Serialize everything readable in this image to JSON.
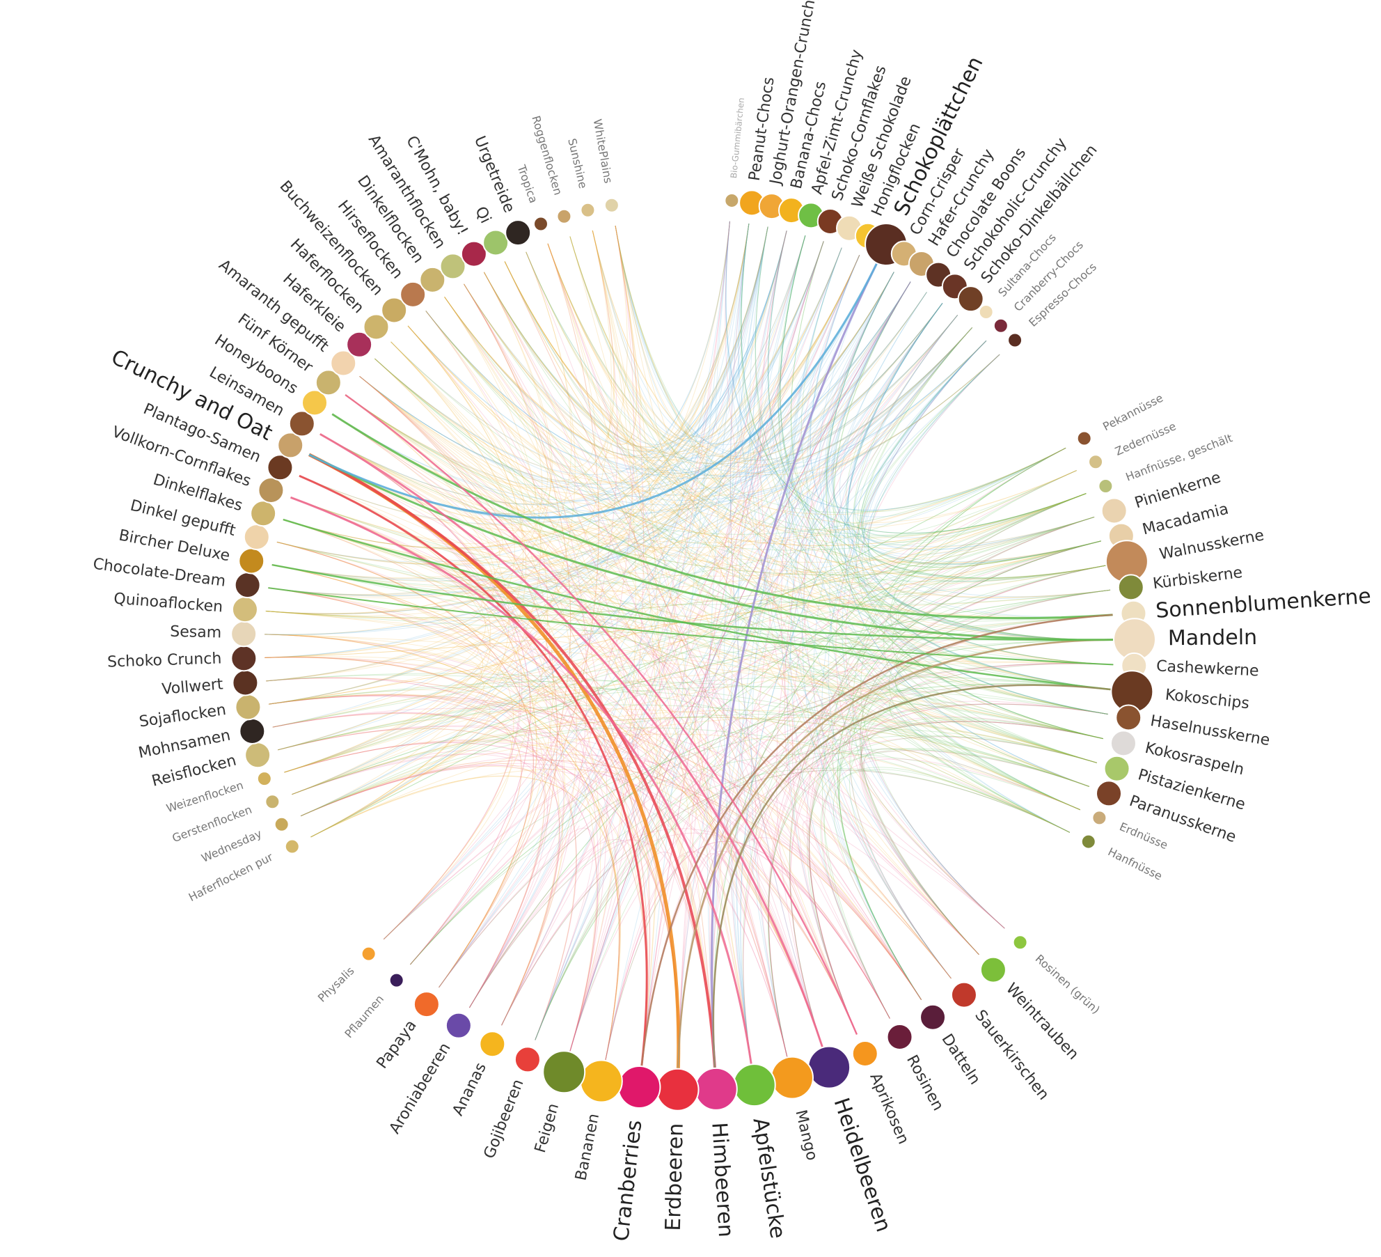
{
  "colors": {
    "grains": "#f2b134",
    "chocolate": "#5aaedb",
    "nuts": "#5dbb4f",
    "fruits": "#ef6691",
    "highlight_orange": "#f08a1c",
    "highlight_red": "#e8434f",
    "highlight_purple": "#9f8fd1"
  },
  "groups": [
    {
      "id": "grains",
      "items": [
        {
          "name": "Haferflocken pur",
          "color": "#d4b86a"
        },
        {
          "name": "Wednesday",
          "color": "#c8a95a"
        },
        {
          "name": "Gerstenflocken",
          "color": "#c9b36e"
        },
        {
          "name": "Weizenflocken",
          "color": "#d2b15c"
        },
        {
          "name": "Reisflocken",
          "color": "#cdbb78"
        },
        {
          "name": "Mohnsamen",
          "color": "#2f2622"
        },
        {
          "name": "Sojaflocken",
          "color": "#c9b36e"
        },
        {
          "name": "Vollwert",
          "color": "#5b3222"
        },
        {
          "name": "Schoko Crunch",
          "color": "#5e3326"
        },
        {
          "name": "Sesam",
          "color": "#e7d6b8"
        },
        {
          "name": "Quinoaflocken",
          "color": "#d3bd7b"
        },
        {
          "name": "Chocolate-Dream",
          "color": "#5a3325"
        },
        {
          "name": "Bircher Deluxe",
          "color": "#c38a1e"
        },
        {
          "name": "Dinkel gepufft",
          "color": "#efd3aa"
        },
        {
          "name": "Dinkelflakes",
          "color": "#cdb46c"
        },
        {
          "name": "Vollkorn-Cornflakes",
          "color": "#b8935a"
        },
        {
          "name": "Plantago-Samen",
          "color": "#6b3a22"
        },
        {
          "name": "Crunchy and Oat",
          "color": "#c8a16a"
        },
        {
          "name": "Leinsamen",
          "color": "#8a5330"
        },
        {
          "name": "Honeyboons",
          "color": "#f5c74a"
        },
        {
          "name": "Fünf Körner",
          "color": "#c9b36e"
        },
        {
          "name": "Amaranth gepufft",
          "color": "#f2d3ae"
        },
        {
          "name": "Haferkleie",
          "color": "#a8305a"
        },
        {
          "name": "Haferflocken",
          "color": "#cdb46c"
        },
        {
          "name": "Buchweizenflocken",
          "color": "#c9ab63"
        },
        {
          "name": "Hirseflocken",
          "color": "#b9794e"
        },
        {
          "name": "Dinkelflocken",
          "color": "#c9b36e"
        },
        {
          "name": "Amaranthflocken",
          "color": "#bfc27a"
        },
        {
          "name": "C'Mohn, baby!",
          "color": "#a8284a"
        },
        {
          "name": "Qi",
          "color": "#9dc46a"
        },
        {
          "name": "Urgetreide",
          "color": "#2f2622"
        },
        {
          "name": "Tropica",
          "color": "#7a4a2a"
        },
        {
          "name": "Roggenflocken",
          "color": "#c9a36a"
        },
        {
          "name": "Sunshine",
          "color": "#d9c088"
        },
        {
          "name": "WhitePlains",
          "color": "#e0d2a8"
        }
      ]
    },
    {
      "id": "chocolate",
      "items": [
        {
          "name": "Bio-Gummibärchen",
          "color": "#c7a76a"
        },
        {
          "name": "Peanut-Chocs",
          "color": "#f1a51e"
        },
        {
          "name": "Joghurt-Orangen-Crunchy",
          "color": "#f0a636"
        },
        {
          "name": "Banana-Chocs",
          "color": "#f2b21e"
        },
        {
          "name": "Apfel-Zimt-Crunchy",
          "color": "#6fbf45"
        },
        {
          "name": "Schoko-Cornflakes",
          "color": "#7a3a22"
        },
        {
          "name": "Weiße Schokolade",
          "color": "#efdcb6"
        },
        {
          "name": "Honigflocken",
          "color": "#f5c330"
        },
        {
          "name": "Schokoplättchen",
          "color": "#5a2e22"
        },
        {
          "name": "Corn-Crisper",
          "color": "#d4b074"
        },
        {
          "name": "Hafer-Crunchy",
          "color": "#c9a36a"
        },
        {
          "name": "Chocolate Boons",
          "color": "#5e3224"
        },
        {
          "name": "Schokoholic-Crunchy",
          "color": "#6a3526"
        },
        {
          "name": "Schoko-Dinkelbällchen",
          "color": "#704026"
        },
        {
          "name": "Sultana-Chocs",
          "color": "#efdcb6"
        },
        {
          "name": "Cranberry-Chocs",
          "color": "#7a2a3a"
        },
        {
          "name": "Espresso-Chocs",
          "color": "#5a2e22"
        }
      ]
    },
    {
      "id": "nuts",
      "items": [
        {
          "name": "Pekannüsse",
          "color": "#8a5330"
        },
        {
          "name": "Zedernüsse",
          "color": "#d4c088"
        },
        {
          "name": "Hanfnüsse, geschält",
          "color": "#b8c07a"
        },
        {
          "name": "Pinienkerne",
          "color": "#ead3b0"
        },
        {
          "name": "Macadamia",
          "color": "#e8cfa8"
        },
        {
          "name": "Walnusskerne",
          "color": "#c28a5a"
        },
        {
          "name": "Kürbiskerne",
          "color": "#7f8a3a"
        },
        {
          "name": "Sonnenblumenkerne",
          "color": "#eedfc0"
        },
        {
          "name": "Mandeln",
          "color": "#efdcc0"
        },
        {
          "name": "Cashewkerne",
          "color": "#f0e0c4"
        },
        {
          "name": "Kokoschips",
          "color": "#6a3a22"
        },
        {
          "name": "Haselnusskerne",
          "color": "#8a5330"
        },
        {
          "name": "Kokosraspeln",
          "color": "#dedad8"
        },
        {
          "name": "Pistazienkerne",
          "color": "#a8c86a"
        },
        {
          "name": "Paranusskerne",
          "color": "#7a4228"
        },
        {
          "name": "Erdnüsse",
          "color": "#c9ab7a"
        },
        {
          "name": "Hanfnüsse",
          "color": "#7f8a3a"
        }
      ]
    },
    {
      "id": "fruits",
      "items": [
        {
          "name": "Rosinen (grün)",
          "color": "#8dc63f"
        },
        {
          "name": "Weintrauben",
          "color": "#7cbf3a"
        },
        {
          "name": "Sauerkirschen",
          "color": "#c0392b"
        },
        {
          "name": "Datteln",
          "color": "#5a1e3a"
        },
        {
          "name": "Rosinen",
          "color": "#6a1e3a"
        },
        {
          "name": "Aprikosen",
          "color": "#f5961e"
        },
        {
          "name": "Heidelbeeren",
          "color": "#4a2a7a"
        },
        {
          "name": "Mango",
          "color": "#f39a1e"
        },
        {
          "name": "Apfelstücke",
          "color": "#6fbf3a"
        },
        {
          "name": "Himbeeren",
          "color": "#e03a8a"
        },
        {
          "name": "Erdbeeren",
          "color": "#e8303e"
        },
        {
          "name": "Cranberries",
          "color": "#e0186a"
        },
        {
          "name": "Bananen",
          "color": "#f5b51e"
        },
        {
          "name": "Feigen",
          "color": "#6f8a2a"
        },
        {
          "name": "Gojibeeren",
          "color": "#e8403a"
        },
        {
          "name": "Ananas",
          "color": "#f5b51e"
        },
        {
          "name": "Aroniabeeren",
          "color": "#6a4aa8"
        },
        {
          "name": "Papaya",
          "color": "#f06a2a"
        },
        {
          "name": "Pflaumen",
          "color": "#3a1e5a"
        },
        {
          "name": "Physalis",
          "color": "#f5a030"
        }
      ]
    }
  ]
}
